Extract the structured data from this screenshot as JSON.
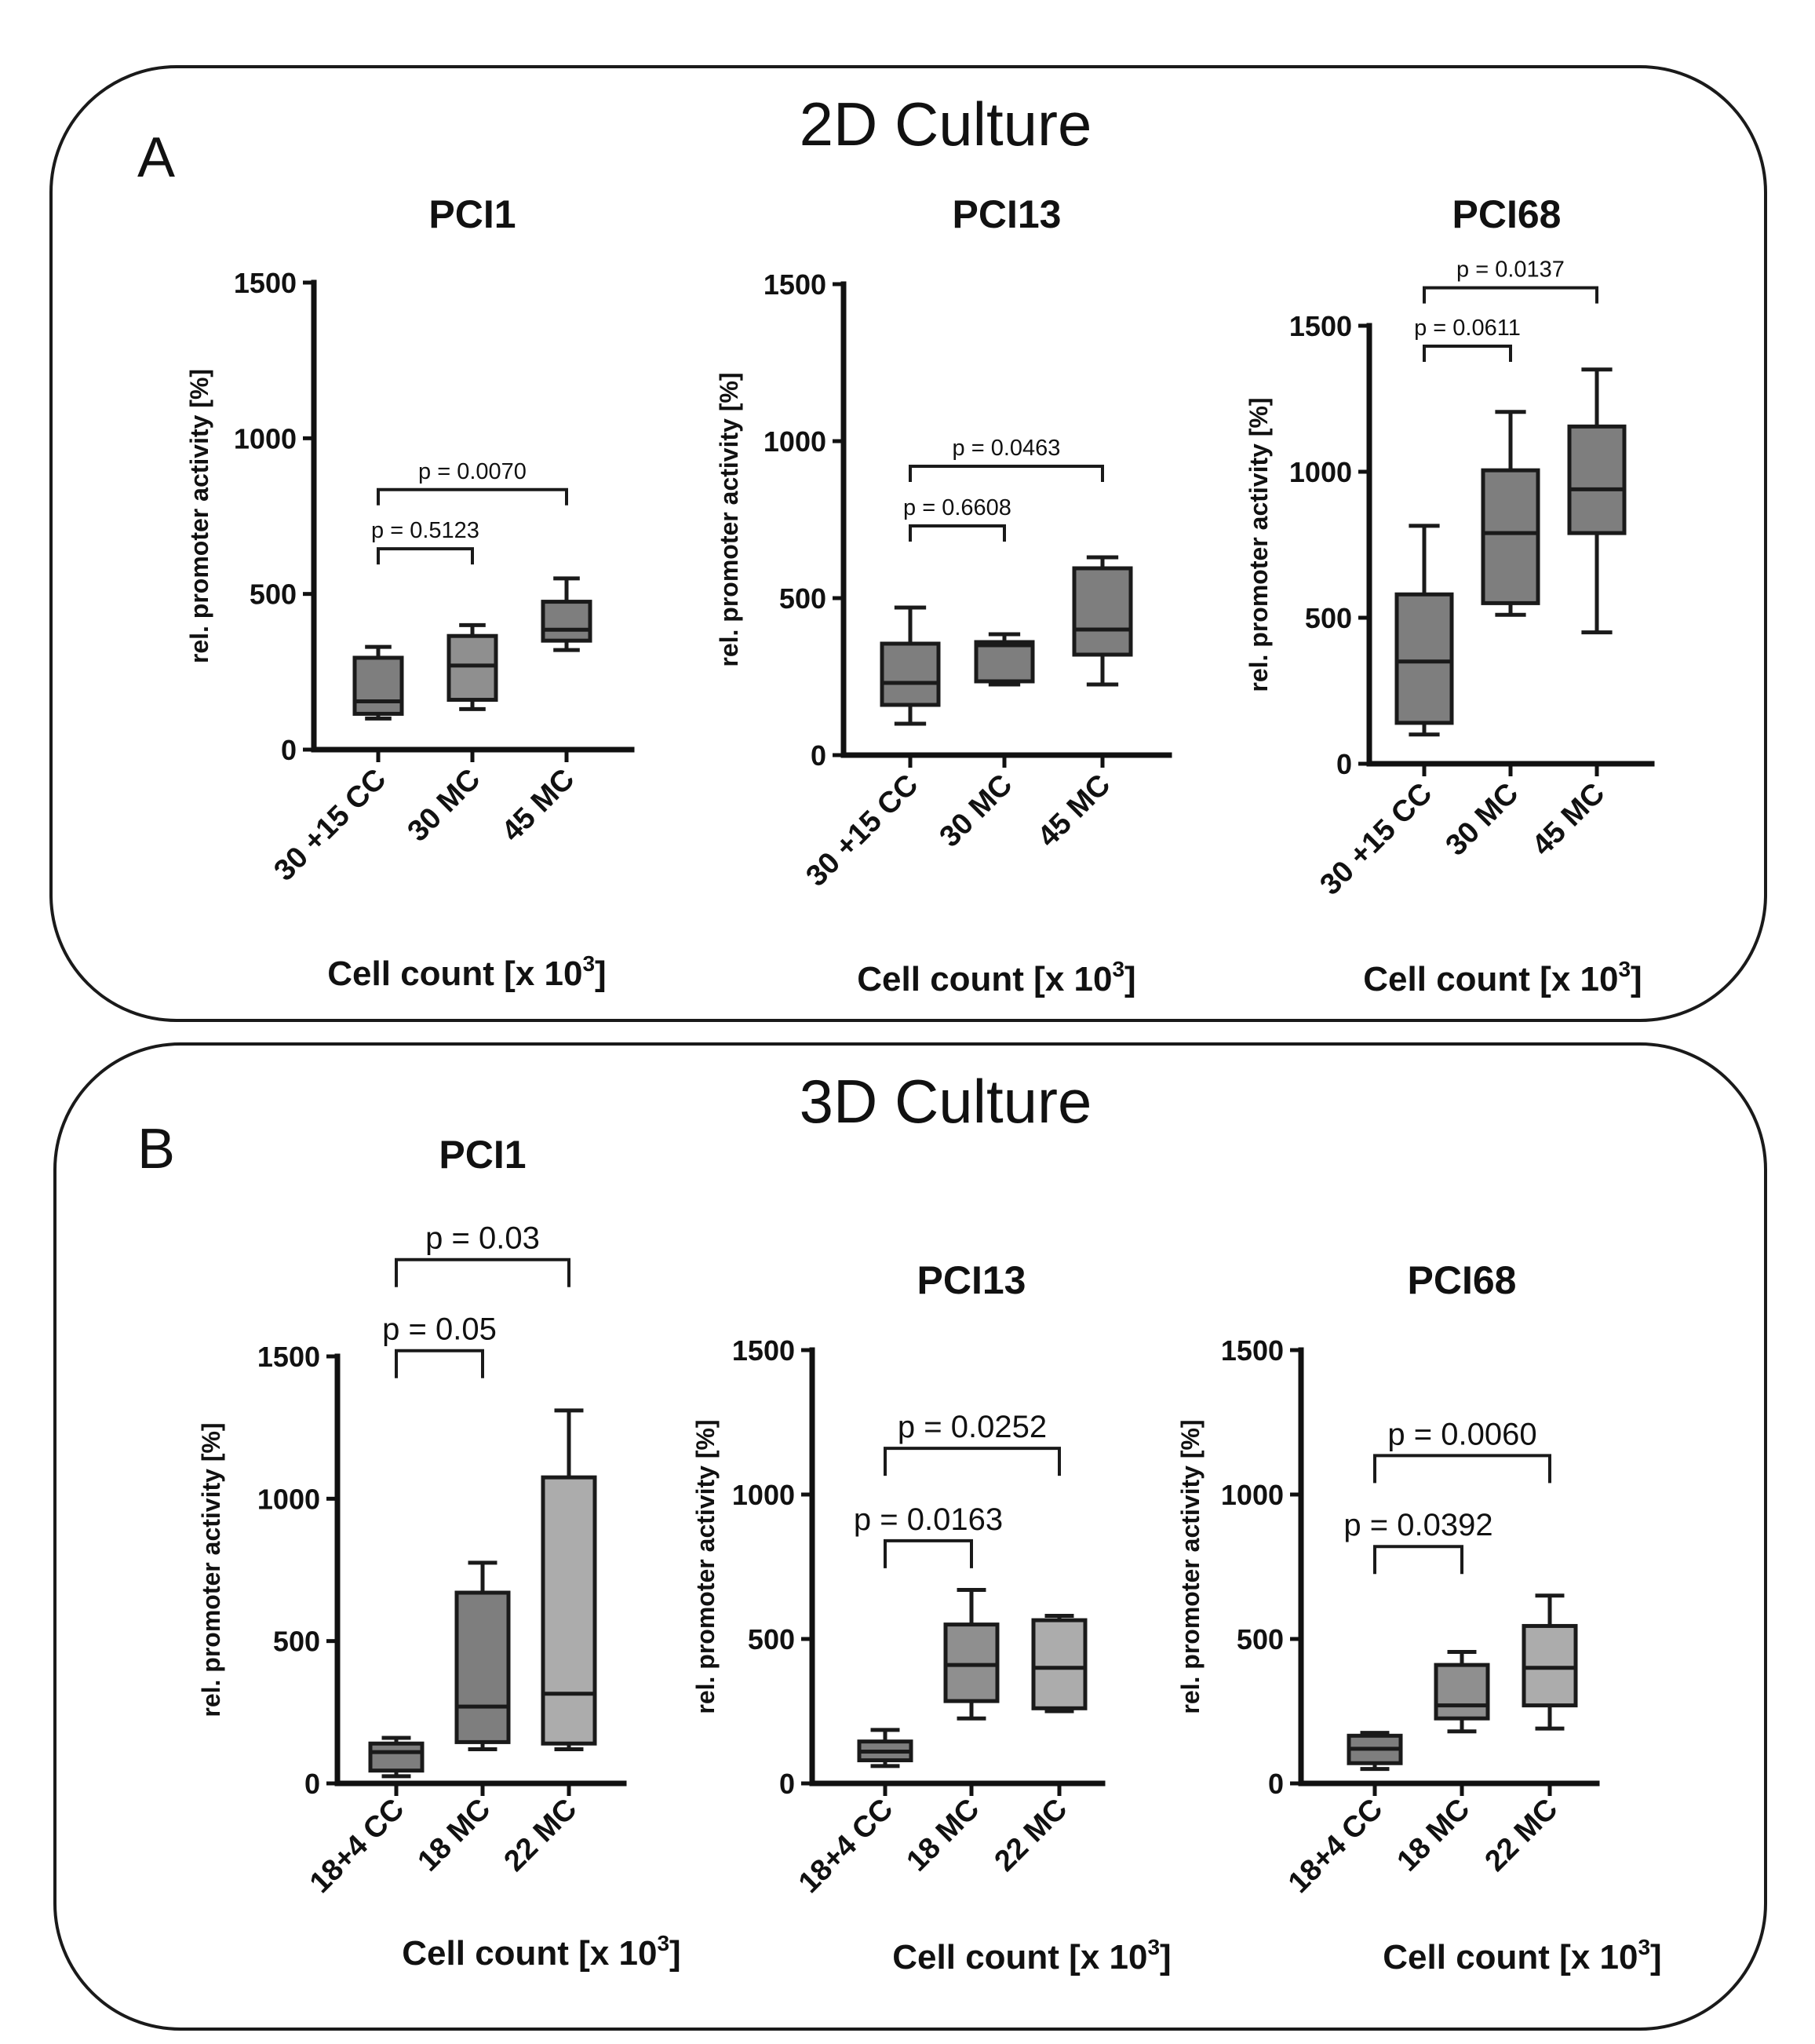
{
  "panels": [
    {
      "letter": "A",
      "heading": "2D Culture"
    },
    {
      "letter": "B",
      "heading": "3D Culture"
    }
  ],
  "colors": {
    "box_dark": "#7e7e7e",
    "box_mid": "#8f8f8f",
    "box_light": "#acacac",
    "line": "#1a1a1a"
  },
  "chart_data": [
    {
      "type": "boxplot",
      "panel": "A",
      "title": "PCI1",
      "ylabel": "rel. promoter activity [%]",
      "xlabel": "Cell count [x 10",
      "xlabel_exp": "3",
      "xlabel_end": "]",
      "ylim": [
        0,
        1500
      ],
      "yticks": [
        0,
        500,
        1000,
        1500
      ],
      "categories": [
        "30 +15 CC",
        "30 MC",
        "45 MC"
      ],
      "boxes": [
        {
          "min": 100,
          "q1": 115,
          "median": 155,
          "q3": 295,
          "max": 330,
          "color": "#7e7e7e"
        },
        {
          "min": 130,
          "q1": 160,
          "median": 270,
          "q3": 365,
          "max": 400,
          "color": "#8f8f8f"
        },
        {
          "min": 320,
          "q1": 350,
          "median": 385,
          "q3": 475,
          "max": 550,
          "color": "#7e7e7e"
        }
      ],
      "comparisons": [
        {
          "from": 0,
          "to": 1,
          "label": "p = 0.5123",
          "y": 645,
          "level": 0
        },
        {
          "from": 0,
          "to": 2,
          "label": "p = 0.0070",
          "y": 835,
          "level": 1
        }
      ]
    },
    {
      "type": "boxplot",
      "panel": "A",
      "title": "PCI13",
      "ylabel": "rel. promoter activity [%]",
      "xlabel": "Cell count [x 10",
      "xlabel_exp": "3",
      "xlabel_end": "]",
      "ylim": [
        0,
        1500
      ],
      "yticks": [
        0,
        500,
        1000,
        1500
      ],
      "categories": [
        "30 +15 CC",
        "30 MC",
        "45 MC"
      ],
      "boxes": [
        {
          "min": 100,
          "q1": 160,
          "median": 230,
          "q3": 355,
          "max": 470,
          "color": "#7e7e7e"
        },
        {
          "min": 225,
          "q1": 235,
          "median": 350,
          "q3": 360,
          "max": 385,
          "color": "#7e7e7e"
        },
        {
          "min": 225,
          "q1": 320,
          "median": 400,
          "q3": 595,
          "max": 630,
          "color": "#7e7e7e"
        }
      ],
      "comparisons": [
        {
          "from": 0,
          "to": 1,
          "label": "p = 0.6608",
          "y": 730,
          "level": 0
        },
        {
          "from": 0,
          "to": 2,
          "label": "p = 0.0463",
          "y": 920,
          "level": 1
        }
      ]
    },
    {
      "type": "boxplot",
      "panel": "A",
      "title": "PCI68",
      "ylabel": "rel. promoter activity [%]",
      "xlabel": "Cell count [x 10",
      "xlabel_exp": "3",
      "xlabel_end": "]",
      "ylim": [
        0,
        1500
      ],
      "yticks": [
        0,
        500,
        1000,
        1500
      ],
      "categories": [
        "30 +15 CC",
        "30 MC",
        "45 MC"
      ],
      "boxes": [
        {
          "min": 100,
          "q1": 140,
          "median": 350,
          "q3": 580,
          "max": 815,
          "color": "#7e7e7e"
        },
        {
          "min": 510,
          "q1": 550,
          "median": 790,
          "q3": 1005,
          "max": 1205,
          "color": "#7e7e7e"
        },
        {
          "min": 450,
          "q1": 790,
          "median": 940,
          "q3": 1155,
          "max": 1350,
          "color": "#7e7e7e"
        }
      ],
      "comparisons": [
        {
          "from": 0,
          "to": 1,
          "label": "p = 0.0611",
          "y": 1430,
          "level": 0
        },
        {
          "from": 0,
          "to": 2,
          "label": "p = 0.0137",
          "y": 1630,
          "level": 1
        }
      ]
    },
    {
      "type": "boxplot",
      "panel": "B",
      "title": "PCI1",
      "ylabel": "rel. promoter activity [%]",
      "xlabel": "Cell count [x 10",
      "xlabel_exp": "3",
      "xlabel_end": "]",
      "ylim": [
        0,
        1500
      ],
      "yticks": [
        0,
        500,
        1000,
        1500
      ],
      "categories": [
        "18+4 CC",
        "18 MC",
        "22 MC"
      ],
      "boxes": [
        {
          "min": 25,
          "q1": 45,
          "median": 110,
          "q3": 140,
          "max": 160,
          "color": "#7e7e7e"
        },
        {
          "min": 120,
          "q1": 145,
          "median": 270,
          "q3": 670,
          "max": 775,
          "color": "#7e7e7e"
        },
        {
          "min": 120,
          "q1": 140,
          "median": 315,
          "q3": 1075,
          "max": 1310,
          "color": "#acacac"
        }
      ],
      "comparisons": [
        {
          "from": 0,
          "to": 1,
          "label": "p = 0.05",
          "y": 1520,
          "level": 0
        },
        {
          "from": 0,
          "to": 2,
          "label": "p = 0.03",
          "y": 1840,
          "level": 1
        }
      ]
    },
    {
      "type": "boxplot",
      "panel": "B",
      "title": "PCI13",
      "ylabel": "rel. promoter activity [%]",
      "xlabel": "Cell count [x 10",
      "xlabel_exp": "3",
      "xlabel_end": "]",
      "ylim": [
        0,
        1500
      ],
      "yticks": [
        0,
        500,
        1000,
        1500
      ],
      "categories": [
        "18+4 CC",
        "18 MC",
        "22 MC"
      ],
      "boxes": [
        {
          "min": 60,
          "q1": 80,
          "median": 110,
          "q3": 145,
          "max": 185,
          "color": "#7e7e7e"
        },
        {
          "min": 225,
          "q1": 285,
          "median": 410,
          "q3": 550,
          "max": 670,
          "color": "#8f8f8f"
        },
        {
          "min": 250,
          "q1": 260,
          "median": 400,
          "q3": 565,
          "max": 580,
          "color": "#acacac"
        }
      ],
      "comparisons": [
        {
          "from": 0,
          "to": 1,
          "label": "p = 0.0163",
          "y": 840,
          "level": 0
        },
        {
          "from": 0,
          "to": 2,
          "label": "p = 0.0252",
          "y": 1160,
          "level": 1
        }
      ]
    },
    {
      "type": "boxplot",
      "panel": "B",
      "title": "PCI68",
      "ylabel": "rel. promoter activity [%]",
      "xlabel": "Cell count [x 10",
      "xlabel_exp": "3",
      "xlabel_end": "]",
      "ylim": [
        0,
        1500
      ],
      "yticks": [
        0,
        500,
        1000,
        1500
      ],
      "categories": [
        "18+4 CC",
        "18 MC",
        "22 MC"
      ],
      "boxes": [
        {
          "min": 50,
          "q1": 70,
          "median": 120,
          "q3": 165,
          "max": 175,
          "color": "#7e7e7e"
        },
        {
          "min": 180,
          "q1": 225,
          "median": 270,
          "q3": 410,
          "max": 455,
          "color": "#8f8f8f"
        },
        {
          "min": 190,
          "q1": 270,
          "median": 400,
          "q3": 545,
          "max": 650,
          "color": "#acacac"
        }
      ],
      "comparisons": [
        {
          "from": 0,
          "to": 1,
          "label": "p = 0.0392",
          "y": 820,
          "level": 0
        },
        {
          "from": 0,
          "to": 2,
          "label": "p = 0.0060",
          "y": 1135,
          "level": 1
        }
      ]
    }
  ]
}
